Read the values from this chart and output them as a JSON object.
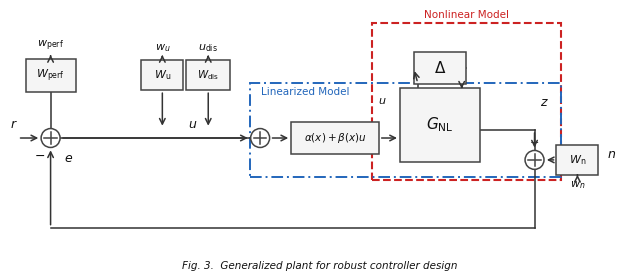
{
  "bg_color": "#ffffff",
  "block_edge": "#444444",
  "block_fill": "#f5f5f5",
  "nl_box_color": "#cc2222",
  "lm_box_color": "#2266bb",
  "line_color": "#333333",
  "text_color": "#111111",
  "fig_caption": "Fig. 3.  Generalized plant for robust controller design"
}
